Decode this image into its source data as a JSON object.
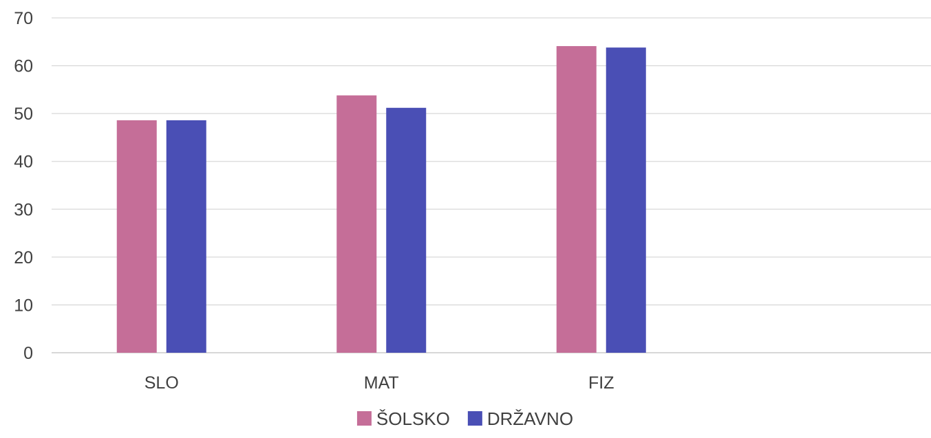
{
  "chart_data": {
    "type": "bar",
    "categories": [
      "SLO",
      "MAT",
      "FIZ",
      ""
    ],
    "series": [
      {
        "name": "ŠOLSKO",
        "color": "#c56e98",
        "values": [
          48.6,
          53.8,
          64.1,
          null
        ]
      },
      {
        "name": "DRŽAVNO",
        "color": "#4a4fb5",
        "values": [
          48.6,
          51.2,
          63.8,
          null
        ]
      }
    ],
    "ylim": [
      0,
      70
    ],
    "yticks": [
      0,
      10,
      20,
      30,
      40,
      50,
      60,
      70
    ],
    "grid": true,
    "legend": "bottom-center",
    "title": "",
    "xlabel": "",
    "ylabel": ""
  }
}
